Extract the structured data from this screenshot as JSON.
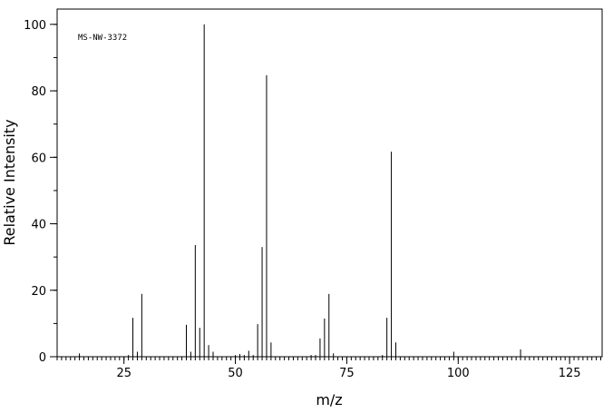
{
  "chart_data": {
    "type": "stem",
    "annotation": "MS-NW-3372",
    "x_label": "m/z",
    "y_label": "Relative Intensity",
    "x": [
      15,
      26,
      27,
      28,
      29,
      39,
      40,
      41,
      42,
      43,
      44,
      45,
      50,
      51,
      52,
      53,
      54,
      55,
      56,
      57,
      58,
      67,
      68,
      69,
      70,
      71,
      72,
      83,
      84,
      85,
      86,
      99,
      114
    ],
    "values": [
      1,
      0.5,
      11.7,
      1.5,
      18.9,
      9.6,
      1.5,
      33.6,
      8.7,
      100,
      3.5,
      1.5,
      0.5,
      0.8,
      0.5,
      1.8,
      0.5,
      9.8,
      33,
      84.7,
      4.3,
      0.5,
      0.5,
      5.5,
      11.5,
      18.9,
      1,
      0.5,
      11.7,
      61.7,
      4.3,
      1.5,
      2.2
    ],
    "color": "#000000",
    "xlim": [
      10,
      132.3
    ],
    "ylim": [
      0,
      104.6
    ],
    "xticks": [
      25,
      50,
      75,
      100,
      125
    ],
    "yticks": [
      0,
      20,
      40,
      60,
      80,
      100
    ],
    "xminor": 1,
    "yminor": 10
  }
}
